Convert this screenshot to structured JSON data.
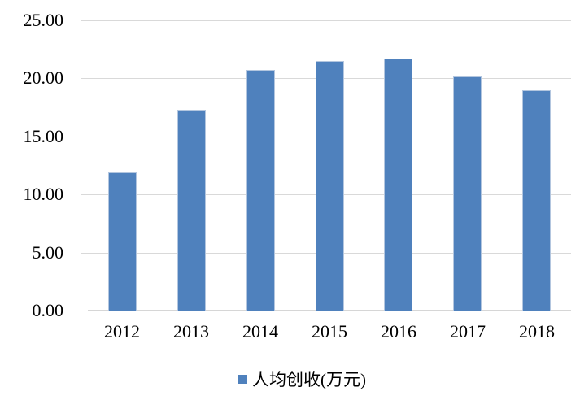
{
  "chart_data": {
    "type": "bar",
    "title": "",
    "categories": [
      "2012",
      "2013",
      "2014",
      "2015",
      "2016",
      "2017",
      "2018"
    ],
    "series": [
      {
        "name": "人均创收(万元)",
        "values": [
          11.9,
          17.3,
          20.7,
          21.5,
          21.7,
          20.2,
          19.0
        ]
      }
    ],
    "xlabel": "",
    "ylabel": "",
    "ylim": [
      0,
      25
    ],
    "ytick_step": 5,
    "ytick_labels": [
      "0.00",
      "5.00",
      "10.00",
      "15.00",
      "20.00",
      "25.00"
    ],
    "grid": "horizontal",
    "legend_position": "bottom",
    "colors": {
      "bar_fill": "#4F81BD",
      "bar_border": "#B3C6DF",
      "gridline": "#D9D9D9",
      "axis_line": "#D6D6D6",
      "tick": "#D9D9D9",
      "text": "#000000",
      "background": "#FFFFFF"
    }
  },
  "legend": {
    "items": [
      {
        "label": "人均创收(万元)",
        "swatch": "legend-swatch"
      }
    ]
  }
}
